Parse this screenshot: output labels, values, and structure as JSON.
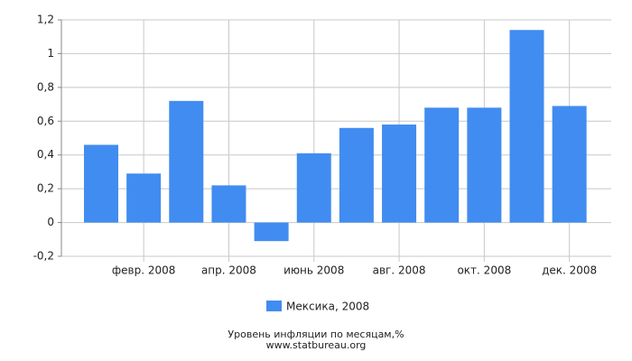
{
  "chart_data": {
    "type": "bar",
    "title": "Уровень инфляции по месяцам,%",
    "source": "www.statbureau.org",
    "categories": [
      null,
      "февр. 2008",
      null,
      "апр. 2008",
      null,
      "июнь 2008",
      null,
      "авг. 2008",
      null,
      "окт. 2008",
      null,
      "дек. 2008"
    ],
    "series": [
      {
        "name": "Мексика, 2008",
        "color": "#418cf0",
        "values": [
          0.46,
          0.29,
          0.72,
          0.22,
          -0.11,
          0.41,
          0.56,
          0.58,
          0.68,
          0.68,
          1.14,
          0.69
        ]
      }
    ],
    "ylim": [
      -0.2,
      1.2
    ],
    "yticks": [
      {
        "value": -0.2,
        "label": "-0,2"
      },
      0,
      {
        "value": 0.2,
        "label": "0,2"
      },
      {
        "value": 0.4,
        "label": "0,4"
      },
      {
        "value": 0.6,
        "label": "0,6"
      },
      {
        "value": 0.8,
        "label": "0,8"
      },
      1,
      {
        "value": 1.2,
        "label": "1,2"
      }
    ],
    "grid": true
  }
}
